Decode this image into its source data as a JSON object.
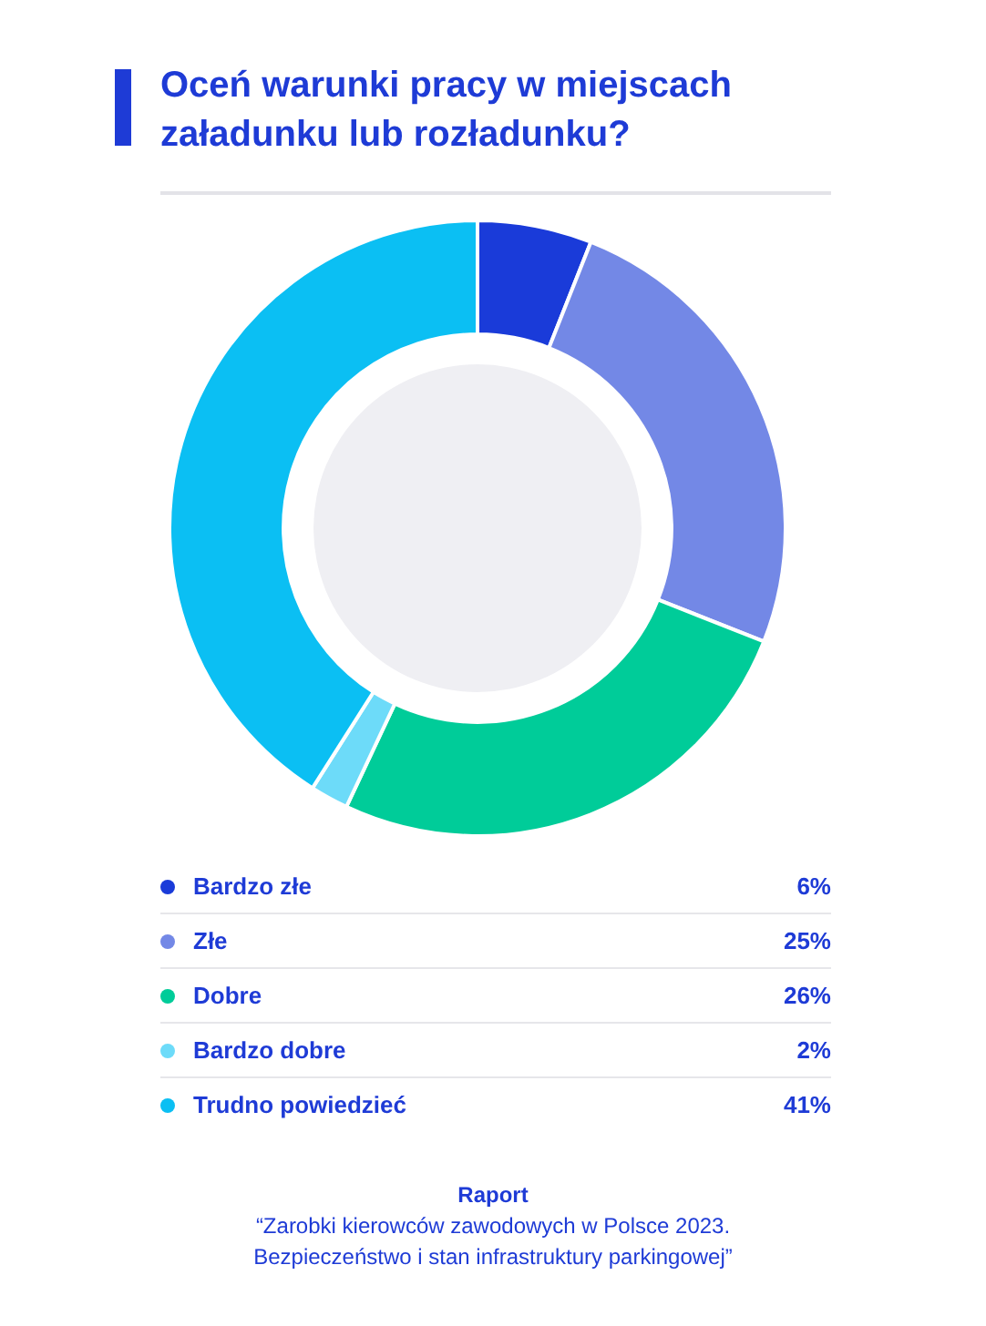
{
  "chart_data": {
    "type": "donut",
    "title": "Oceń warunki pracy w miejscach załadunku lub rozładunku?",
    "categories": [
      "Bardzo złe",
      "Złe",
      "Dobre",
      "Bardzo dobre",
      "Trudno powiedzieć"
    ],
    "values": [
      6,
      25,
      26,
      2,
      41
    ],
    "colors": [
      "#1a3bd9",
      "#7388e6",
      "#00cc99",
      "#6ddbf9",
      "#0bbff3"
    ],
    "value_labels": [
      "6%",
      "25%",
      "26%",
      "2%",
      "41%"
    ],
    "legend": "bottom",
    "annotations": [
      "Raport",
      "“Zarobki kierowców zawodowych w Polsce 2023.\nBezpieczeństwo i stan infrastruktury parkingowej”"
    ]
  }
}
